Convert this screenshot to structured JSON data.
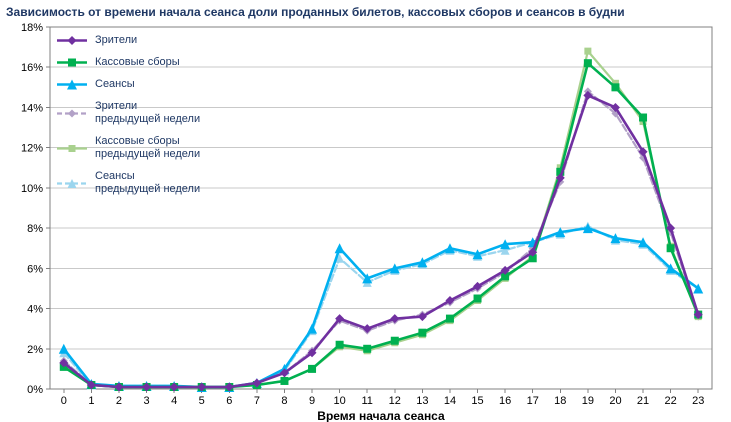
{
  "chart_data": {
    "type": "line",
    "title": "Зависимость от времени начала сеанса доли проданных билетов, кассовых сборов и сеансов в будни",
    "xlabel": "Время начала сеанса",
    "ylabel": "",
    "ylim": [
      0,
      18
    ],
    "ytick_step": 2,
    "ytick_suffix": "%",
    "grid": true,
    "legend_position": "top-left-inside",
    "x": [
      "0",
      "1",
      "2",
      "3",
      "4",
      "5",
      "6",
      "7",
      "8",
      "9",
      "10",
      "11",
      "12",
      "13",
      "14",
      "15",
      "16",
      "17",
      "18",
      "19",
      "20",
      "21",
      "22",
      "23"
    ],
    "series": [
      {
        "name": "Зрители",
        "legend_lines": [
          "Зрители"
        ],
        "color": "#7030a0",
        "marker": "diamond",
        "marker_size": 4.5,
        "dash": "solid",
        "width": 2.6,
        "values": [
          1.3,
          0.2,
          0.1,
          0.1,
          0.1,
          0.1,
          0.1,
          0.3,
          0.8,
          1.8,
          3.5,
          3.0,
          3.5,
          3.6,
          4.4,
          5.1,
          5.9,
          6.8,
          10.5,
          14.6,
          14.0,
          11.8,
          8.0,
          3.7
        ]
      },
      {
        "name": "Кассовые сборы",
        "legend_lines": [
          "Кассовые сборы"
        ],
        "color": "#00b050",
        "marker": "square",
        "marker_size": 4.5,
        "dash": "solid",
        "width": 2.6,
        "values": [
          1.1,
          0.2,
          0.1,
          0.1,
          0.1,
          0.1,
          0.1,
          0.2,
          0.4,
          1.0,
          2.2,
          2.0,
          2.4,
          2.8,
          3.5,
          4.5,
          5.6,
          6.5,
          10.8,
          16.2,
          15.0,
          13.5,
          7.0,
          3.7
        ]
      },
      {
        "name": "Сеансы",
        "legend_lines": [
          "Сеансы"
        ],
        "color": "#00b0f0",
        "marker": "triangle",
        "marker_size": 5,
        "dash": "solid",
        "width": 2.6,
        "values": [
          2.0,
          0.25,
          0.15,
          0.15,
          0.15,
          0.1,
          0.1,
          0.3,
          1.0,
          3.0,
          7.0,
          5.5,
          6.0,
          6.3,
          7.0,
          6.7,
          7.2,
          7.3,
          7.8,
          8.0,
          7.5,
          7.3,
          6.0,
          5.0
        ]
      },
      {
        "name": "Зрители предыдущей недели",
        "legend_lines": [
          "Зрители",
          "предыдущей недели"
        ],
        "color": "#b2a1c7",
        "marker": "diamond",
        "marker_size": 4,
        "dash": "dashed",
        "width": 2.2,
        "values": [
          1.4,
          0.2,
          0.1,
          0.1,
          0.1,
          0.1,
          0.1,
          0.3,
          0.8,
          1.9,
          3.4,
          2.9,
          3.4,
          3.7,
          4.3,
          5.0,
          5.8,
          7.0,
          10.3,
          14.8,
          13.7,
          11.5,
          7.8,
          3.6
        ]
      },
      {
        "name": "Кассовые сборы предыдущей недели",
        "legend_lines": [
          "Кассовые сборы",
          "предыдущей недели"
        ],
        "color": "#a9d18e",
        "marker": "square",
        "marker_size": 4,
        "dash": "solid",
        "width": 2.2,
        "values": [
          1.1,
          0.2,
          0.1,
          0.1,
          0.1,
          0.1,
          0.1,
          0.2,
          0.4,
          1.0,
          2.1,
          1.9,
          2.3,
          2.7,
          3.4,
          4.4,
          5.5,
          6.6,
          11.0,
          16.8,
          15.2,
          13.3,
          7.1,
          3.6
        ]
      },
      {
        "name": "Сеансы предыдущей недели",
        "legend_lines": [
          "Сеансы",
          "предыдущей недели"
        ],
        "color": "#9bd5ee",
        "marker": "triangle",
        "marker_size": 4.5,
        "dash": "dashed",
        "width": 2.2,
        "values": [
          1.8,
          0.2,
          0.15,
          0.15,
          0.15,
          0.1,
          0.1,
          0.3,
          0.9,
          2.9,
          6.5,
          5.3,
          5.9,
          6.2,
          6.9,
          6.6,
          6.9,
          7.3,
          7.7,
          8.1,
          7.4,
          7.2,
          5.9,
          5.0
        ]
      }
    ],
    "draw_order": [
      5,
      3,
      4,
      2,
      1,
      0
    ],
    "colors": {
      "gridline": "#c9c9c9",
      "axis": "#808080",
      "title_text": "#1f3864",
      "legend_text": "#1f3864"
    }
  }
}
